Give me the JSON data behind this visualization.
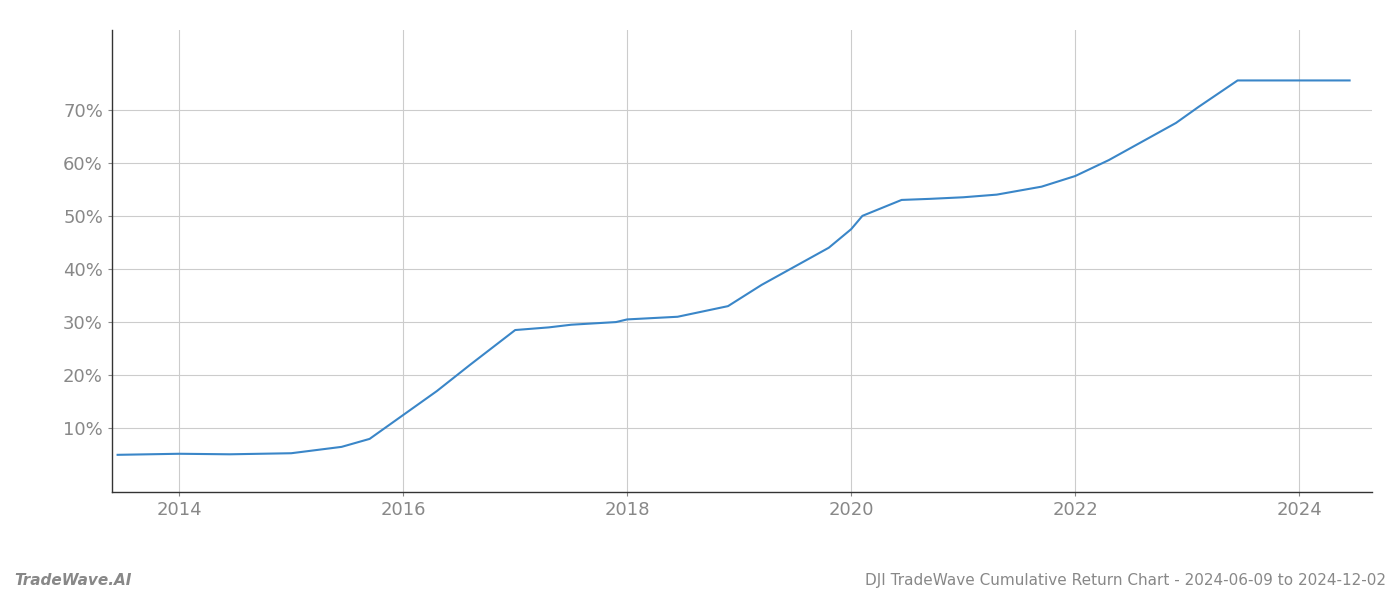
{
  "x_values": [
    2013.45,
    2014.0,
    2014.45,
    2015.0,
    2015.45,
    2015.7,
    2016.0,
    2016.3,
    2016.6,
    2017.0,
    2017.3,
    2017.5,
    2017.9,
    2018.0,
    2018.45,
    2018.9,
    2019.2,
    2019.5,
    2019.8,
    2020.0,
    2020.1,
    2020.45,
    2020.7,
    2021.0,
    2021.3,
    2021.7,
    2022.0,
    2022.3,
    2022.6,
    2022.9,
    2023.1,
    2023.45,
    2023.7,
    2023.92,
    2024.45
  ],
  "y_values": [
    5.0,
    5.2,
    5.1,
    5.3,
    6.5,
    8.0,
    12.5,
    17.0,
    22.0,
    28.5,
    29.0,
    29.5,
    30.0,
    30.5,
    31.0,
    33.0,
    37.0,
    40.5,
    44.0,
    47.5,
    50.0,
    53.0,
    53.2,
    53.5,
    54.0,
    55.5,
    57.5,
    60.5,
    64.0,
    67.5,
    70.5,
    75.5,
    75.5,
    75.5,
    75.5
  ],
  "line_color": "#3a86c8",
  "line_width": 1.5,
  "title": "DJI TradeWave Cumulative Return Chart - 2024-06-09 to 2024-12-02",
  "xlabel": "",
  "ylabel": "",
  "xlim": [
    2013.4,
    2024.65
  ],
  "ylim": [
    -2,
    85
  ],
  "yticks": [
    10,
    20,
    30,
    40,
    50,
    60,
    70
  ],
  "xticks": [
    2014,
    2016,
    2018,
    2020,
    2022,
    2024
  ],
  "grid_color": "#cccccc",
  "background_color": "#ffffff",
  "watermark_left": "TradeWave.AI",
  "watermark_right": "DJI TradeWave Cumulative Return Chart - 2024-06-09 to 2024-12-02",
  "tick_color": "#888888",
  "tick_fontsize": 13,
  "watermark_fontsize": 11
}
